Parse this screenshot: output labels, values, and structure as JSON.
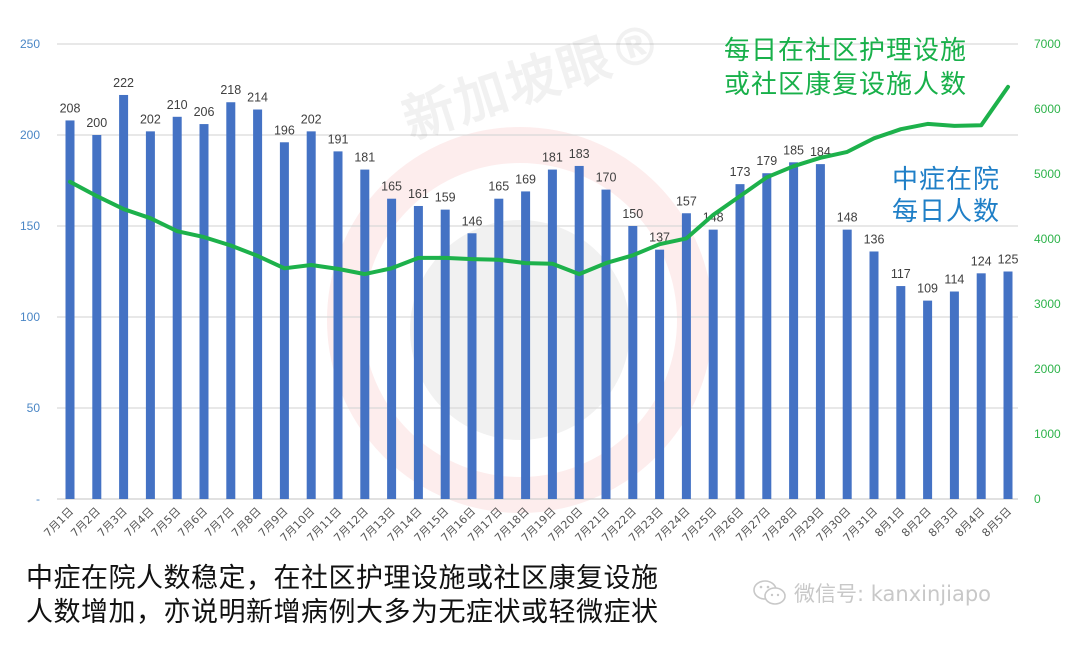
{
  "chart_data": {
    "type": "bar+line",
    "title": "",
    "categories": [
      "7月1日",
      "7月2日",
      "7月3日",
      "7月4日",
      "7月5日",
      "7月6日",
      "7月7日",
      "7月8日",
      "7月9日",
      "7月10日",
      "7月11日",
      "7月12日",
      "7月13日",
      "7月14日",
      "7月15日",
      "7月16日",
      "7月17日",
      "7月18日",
      "7月19日",
      "7月20日",
      "7月21日",
      "7月22日",
      "7月23日",
      "7月24日",
      "7月25日",
      "7月26日",
      "7月27日",
      "7月28日",
      "7月29日",
      "7月30日",
      "7月31日",
      "8月1日",
      "8月2日",
      "8月3日",
      "8月4日",
      "8月5日"
    ],
    "series": [
      {
        "name": "中症在院每日人数",
        "type": "bar",
        "axis": "left",
        "color": "#4472c4",
        "values": [
          208,
          200,
          222,
          202,
          210,
          206,
          218,
          214,
          196,
          202,
          191,
          181,
          165,
          161,
          159,
          146,
          165,
          169,
          181,
          183,
          170,
          150,
          137,
          157,
          148,
          173,
          179,
          185,
          184,
          148,
          136,
          117,
          109,
          114,
          124,
          125
        ]
      },
      {
        "name": "每日在社区护理设施或社区康复设施人数",
        "type": "line",
        "axis": "right",
        "color": "#1db14b",
        "values": [
          4880,
          4660,
          4460,
          4320,
          4120,
          4030,
          3900,
          3740,
          3550,
          3600,
          3540,
          3460,
          3550,
          3710,
          3710,
          3690,
          3680,
          3630,
          3620,
          3460,
          3630,
          3750,
          3920,
          4010,
          4370,
          4660,
          4950,
          5120,
          5250,
          5340,
          5550,
          5690,
          5770,
          5740,
          5750,
          6340
        ]
      }
    ],
    "left_axis": {
      "ticks": [
        "-",
        "50",
        "100",
        "150",
        "200",
        "250"
      ],
      "ylim": [
        0,
        250
      ],
      "color": "#4a86c5"
    },
    "right_axis": {
      "ticks": [
        "0",
        "1000",
        "2000",
        "3000",
        "4000",
        "5000",
        "6000",
        "7000"
      ],
      "ylim": [
        0,
        7000
      ],
      "color": "#2db34a"
    },
    "grid": true,
    "annotations": [
      {
        "text": "每日在社区护理设施\n或社区康复设施人数",
        "color": "#18b04a"
      },
      {
        "text": "中症在院\n每日人数",
        "color": "#1f7fc7"
      }
    ]
  },
  "annotations": {
    "green_line1": "每日在社区护理设施",
    "green_line2": "或社区康复设施人数",
    "blue_line1": "中症在院",
    "blue_line2": "每日人数"
  },
  "caption": {
    "line1": "中症在院人数稳定，在社区护理设施或社区康复设施",
    "line2": "人数增加，亦说明新增病例大多为无症状或轻微症状"
  },
  "watermark": {
    "brand": "新加坡眼®",
    "wechat_label": "微信号: kanxinjiapo"
  }
}
